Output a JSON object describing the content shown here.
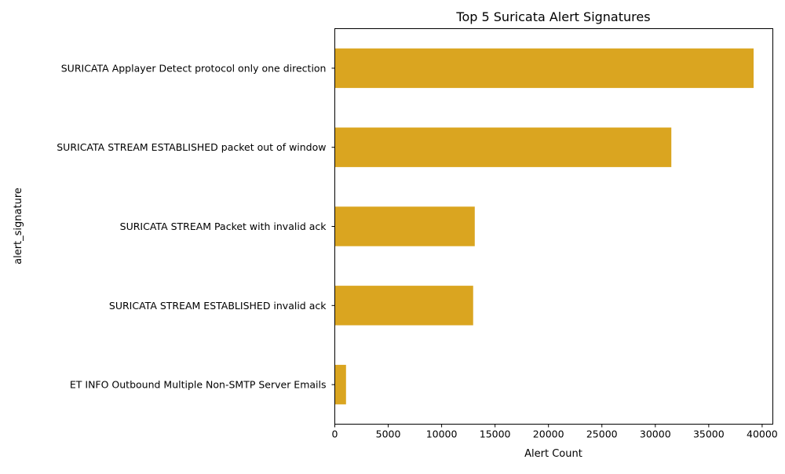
{
  "chart_data": {
    "type": "bar",
    "orientation": "horizontal",
    "title": "Top 5 Suricata Alert Signatures",
    "xlabel": "Alert Count",
    "ylabel": "alert_signature",
    "categories": [
      "SURICATA Applayer Detect protocol only one direction",
      "SURICATA STREAM ESTABLISHED packet out of window",
      "SURICATA STREAM Packet with invalid ack",
      "SURICATA STREAM ESTABLISHED invalid ack",
      "ET INFO Outbound Multiple Non-SMTP Server Emails"
    ],
    "values": [
      39200,
      31500,
      13100,
      12950,
      1050
    ],
    "xlim": [
      0,
      41000
    ],
    "xticks": [
      0,
      5000,
      10000,
      15000,
      20000,
      25000,
      30000,
      35000,
      40000
    ],
    "xtick_labels": [
      "0",
      "5000",
      "10000",
      "15000",
      "20000",
      "25000",
      "30000",
      "35000",
      "40000"
    ],
    "bar_color": "#DAA520",
    "grid": false,
    "legend": "none"
  }
}
